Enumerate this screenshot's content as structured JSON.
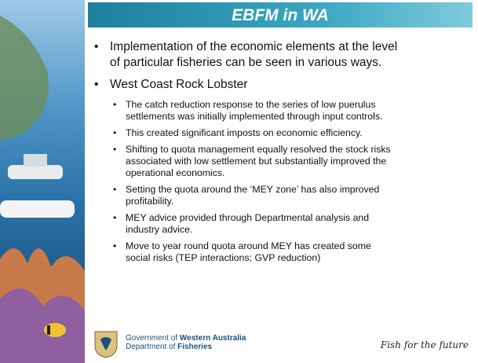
{
  "title": "EBFM in WA",
  "bullets": [
    {
      "lines": [
        "Implementation of the economic elements at the level",
        "of particular fisheries can be seen in various ways."
      ]
    },
    {
      "lines": [
        "West Coast Rock Lobster"
      ],
      "sub": [
        [
          "The catch reduction response to the series of low puerulus",
          "settlements was initially implemented through input controls."
        ],
        [
          "This created significant imposts on economic efficiency."
        ],
        [
          "Shifting to quota management equally resolved the stock risks",
          "associated with low settlement but substantially improved the",
          "operational economics."
        ],
        [
          "Setting the quota around the ‘MEY zone’ has also improved",
          "profitability."
        ],
        [
          "MEY advice provided through Departmental analysis and",
          "industry advice."
        ],
        [
          "Move to year round quota around MEY has created some",
          "social risks (TEP interactions; GVP reduction)"
        ]
      ]
    }
  ],
  "footer": {
    "government": [
      "Government of ",
      "Western Australia"
    ],
    "department": [
      "Department of ",
      "Fisheries"
    ],
    "tagline": "Fish for the future"
  }
}
